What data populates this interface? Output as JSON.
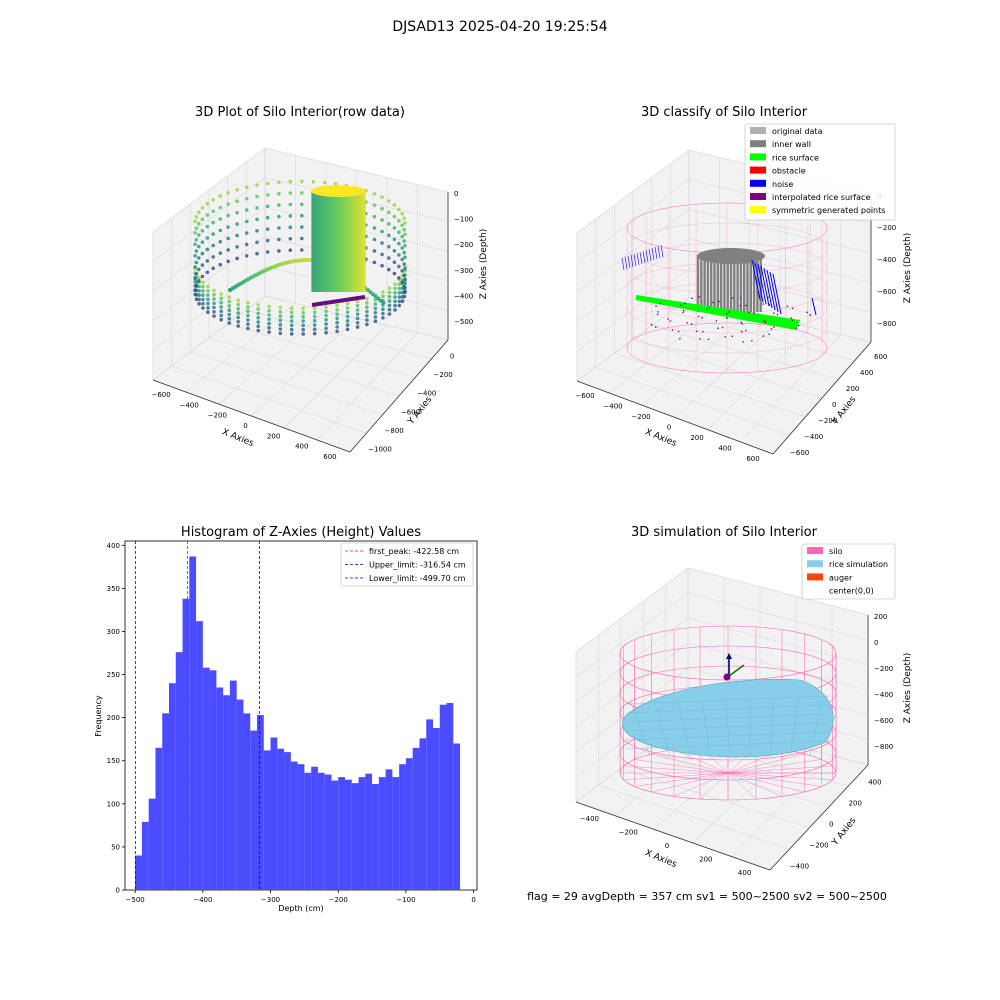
{
  "figure": {
    "suptitle": "DJSAD13 2025-04-20 19:25:54",
    "footer": "flag = 29  avgDepth = 357 cm  sv1 = 500~2500  sv2 = 500~2500"
  },
  "colors": {
    "hist_bar": "#4b4bff",
    "first_peak": "#e31a1c",
    "limit": "#0000cc",
    "silo_pink": "#ff69b4",
    "rice_sim": "#87ceeb",
    "auger": "#ff4500",
    "noise": "#0000ff",
    "rice_surface": "#00ff00",
    "inner_wall": "#808080",
    "original": "#b0b0b0",
    "interp": "#800080",
    "symmetric": "#ffff00"
  },
  "panels": {
    "p1": {
      "title": "3D Plot of Silo Interior(row data)",
      "xlabel": "X Axies",
      "ylabel": "Y Axies",
      "zlabel": "Z Axies (Depth)",
      "xticks": [
        "−600",
        "−400",
        "−200",
        "0",
        "200",
        "400",
        "600"
      ],
      "yticks": [
        "−1000",
        "−800",
        "−600",
        "−400",
        "−200",
        "0"
      ],
      "zticks": [
        "0",
        "−100",
        "−200",
        "−300",
        "−400",
        "−500"
      ]
    },
    "p2": {
      "title": "3D classify of Silo Interior",
      "xlabel": "X Axies",
      "ylabel": "Y Axies",
      "zlabel": "Z Axies (Depth)",
      "xticks": [
        "−600",
        "−400",
        "−200",
        "0",
        "200",
        "400",
        "600"
      ],
      "yticks": [
        "−600",
        "−400",
        "−200",
        "0",
        "200",
        "400",
        "600"
      ],
      "zticks": [
        "0",
        "−200",
        "−400",
        "−600",
        "−800"
      ],
      "legend": [
        {
          "label": "original data",
          "color": "#b0b0b0"
        },
        {
          "label": "inner wall",
          "color": "#808080"
        },
        {
          "label": "rice surface",
          "color": "#00ff00"
        },
        {
          "label": "obstacle",
          "color": "#ff0000"
        },
        {
          "label": "noise",
          "color": "#0000ff"
        },
        {
          "label": "interpolated rice surface",
          "color": "#800080"
        },
        {
          "label": "symmetric generated points",
          "color": "#ffff00"
        }
      ]
    },
    "p4": {
      "title": "3D simulation of Silo Interior",
      "xlabel": "X Axies",
      "ylabel": "Y Axies",
      "zlabel": "Z Axies (Depth)",
      "xticks": [
        "−400",
        "−200",
        "0",
        "200",
        "400"
      ],
      "yticks": [
        "−400",
        "−200",
        "0",
        "200",
        "400"
      ],
      "zticks": [
        "200",
        "0",
        "−200",
        "−400",
        "−600",
        "−800"
      ],
      "legend": [
        {
          "label": "silo",
          "color": "#ff69b4"
        },
        {
          "label": "rice simulation",
          "color": "#87ceeb"
        },
        {
          "label": "auger",
          "color": "#ff4500"
        },
        {
          "label": "center(0,0)",
          "color": "#ffffff"
        }
      ]
    }
  },
  "chart_data": {
    "type": "bar",
    "title": "Histogram of Z-Axies (Height) Values",
    "xlabel": "Depth (cm)",
    "ylabel": "Frequency",
    "xlim": [
      -515,
      5
    ],
    "ylim": [
      0,
      405
    ],
    "xticks": [
      -500,
      -400,
      -300,
      -200,
      -100,
      0
    ],
    "yticks": [
      0,
      50,
      100,
      150,
      200,
      250,
      300,
      350,
      400
    ],
    "bin_start": -500,
    "bin_width": 10,
    "values": [
      40,
      79,
      106,
      165,
      205,
      240,
      276,
      338,
      387,
      312,
      258,
      255,
      235,
      226,
      243,
      221,
      205,
      185,
      203,
      162,
      177,
      164,
      160,
      149,
      146,
      136,
      143,
      136,
      134,
      127,
      131,
      128,
      124,
      131,
      135,
      123,
      131,
      140,
      131,
      146,
      153,
      165,
      176,
      198,
      188,
      215,
      217,
      170
    ],
    "vlines": [
      {
        "x": -422.58,
        "label": "first_peak: -422.58 cm",
        "color": "#e31a1c"
      },
      {
        "x": -316.54,
        "label": "Upper_limit: -316.54 cm",
        "color": "#0000cc"
      },
      {
        "x": -499.7,
        "label": "Lower_limit: -499.70 cm",
        "color": "#0000cc"
      }
    ],
    "legend_position": "top-right"
  }
}
